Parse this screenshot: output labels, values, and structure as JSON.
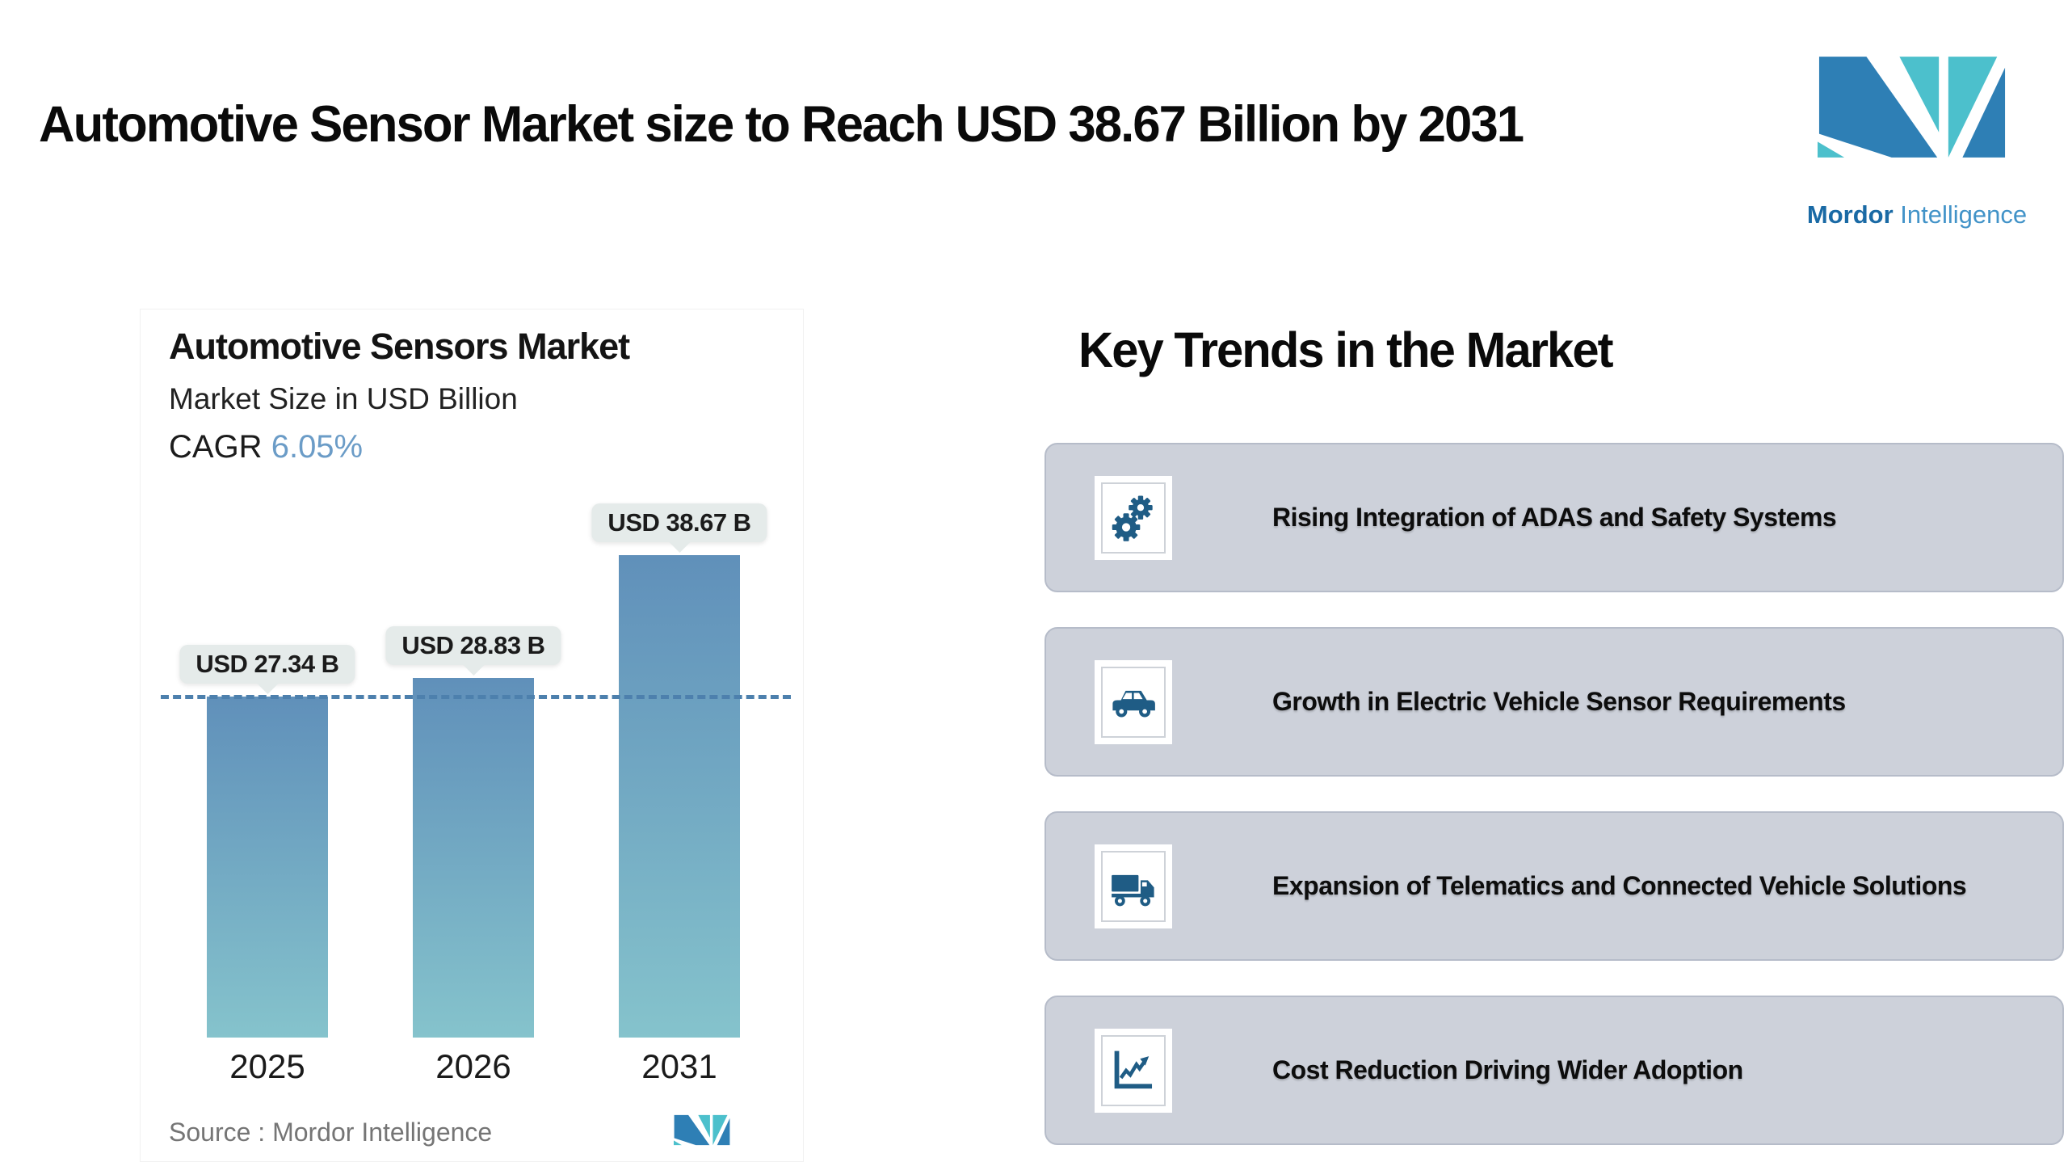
{
  "page": {
    "title": "Automotive Sensor Market size to Reach USD 38.67 Billion by 2031"
  },
  "brand": {
    "name_primary": "Mordor",
    "name_secondary": "Intelligence",
    "blue": "#2e7fb5",
    "teal": "#4cc0cc"
  },
  "chart_card": {
    "title": "Automotive Sensors Market",
    "subtitle": "Market Size in USD Billion",
    "cagr_label": "CAGR",
    "cagr_value": "6.05%",
    "source_text": "Source :  Mordor Intelligence"
  },
  "chart_data": {
    "type": "bar",
    "categories": [
      "2025",
      "2026",
      "2031"
    ],
    "values": [
      27.34,
      28.83,
      38.67
    ],
    "value_labels": [
      "USD 27.34 B",
      "USD 28.83 B",
      "USD 38.67 B"
    ],
    "title": "Automotive Sensors Market",
    "subtitle": "Market Size in USD Billion",
    "cagr": "6.05%",
    "xlabel": "",
    "ylabel": "Market Size in USD Billion",
    "ylim": [
      0,
      42
    ],
    "grid": false,
    "legend": false,
    "reference_line": {
      "y": 27.34,
      "style": "dashed",
      "color": "#4d80ad"
    },
    "bar_gradient": {
      "top": "#6090ba",
      "bottom": "#85c3cc"
    },
    "source": "Source :  Mordor Intelligence"
  },
  "key_trends": {
    "heading": "Key Trends in the Market",
    "card_bg": "#cdd1da",
    "icon_color": "#1f5c85",
    "cards": [
      {
        "icon": "gears-icon",
        "label": "Rising Integration of ADAS and Safety Systems"
      },
      {
        "icon": "car-icon",
        "label": "Growth in Electric Vehicle Sensor Requirements"
      },
      {
        "icon": "truck-icon",
        "label": "Expansion of Telematics and Connected Vehicle Solutions"
      },
      {
        "icon": "chart-icon",
        "label": "Cost Reduction Driving Wider Adoption"
      }
    ]
  }
}
